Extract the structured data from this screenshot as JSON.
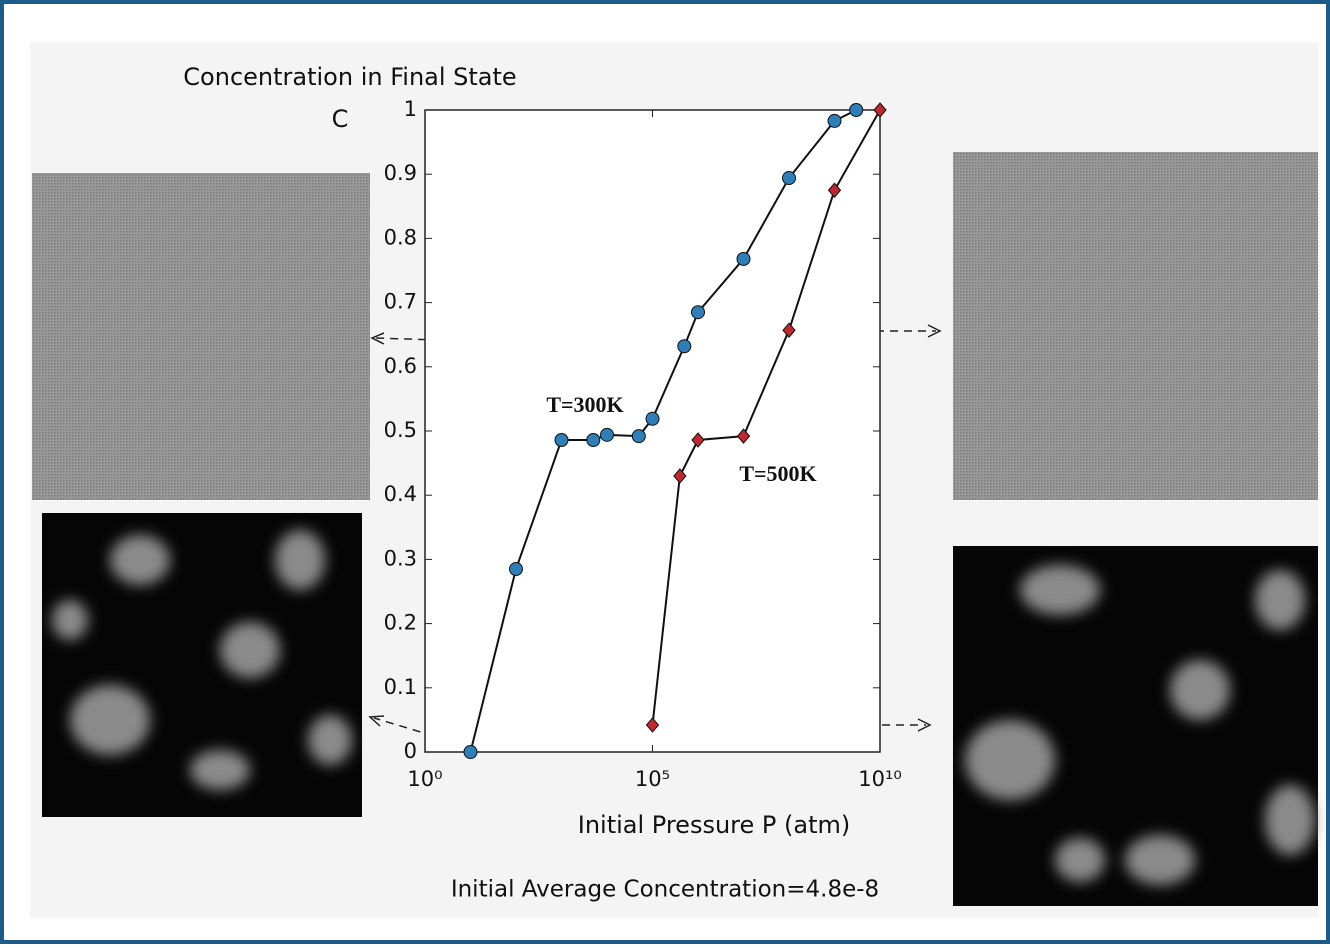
{
  "chart_data": {
    "type": "line",
    "title": "Concentration in Final State",
    "ylabel": "C",
    "xlabel": "Initial Pressure P (atm)",
    "annotation": "Initial Average Concentration=4.8e-8",
    "xlog": true,
    "xlim": [
      1,
      10000000000
    ],
    "xticks": [
      {
        "value": 1,
        "label": "10⁰"
      },
      {
        "value": 100000,
        "label": "10⁵"
      },
      {
        "value": 10000000000,
        "label": "10¹⁰"
      }
    ],
    "ylim": [
      0,
      1
    ],
    "yticks": [
      0,
      0.1,
      0.2,
      0.3,
      0.4,
      0.5,
      0.6,
      0.7,
      0.8,
      0.9,
      1
    ],
    "series": [
      {
        "name": "T=300K",
        "color": "#2e7fb8",
        "marker": "circle",
        "x": [
          10,
          100,
          1000,
          5000,
          10000,
          50000,
          100000,
          500000,
          1000000,
          10000000,
          100000000,
          1000000000,
          3000000000
        ],
        "values": [
          0,
          0.285,
          0.486,
          0.486,
          0.494,
          0.492,
          0.519,
          0.632,
          0.685,
          0.768,
          0.894,
          0.983,
          1
        ]
      },
      {
        "name": "T=500K",
        "color": "#c0282d",
        "marker": "diamond",
        "x": [
          100000,
          400000,
          1000000,
          10000000,
          100000000,
          1000000000,
          10000000000
        ],
        "values": [
          0.042,
          0.43,
          0.486,
          0.492,
          0.657,
          0.875,
          1
        ]
      }
    ]
  }
}
